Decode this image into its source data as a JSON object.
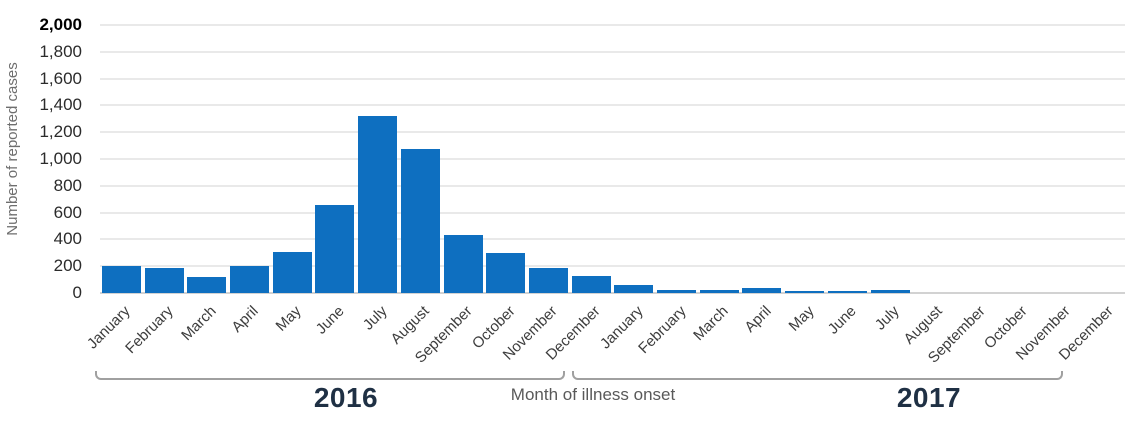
{
  "chart_data": {
    "type": "bar",
    "title": "",
    "ylabel": "Number of reported cases",
    "xlabel": "Month of illness onset",
    "ylim": [
      0,
      2000
    ],
    "ytick_step": 200,
    "ytick_labels": [
      "2,000",
      "1,800",
      "1,600",
      "1,400",
      "1,200",
      "1,000",
      "800",
      "600",
      "400",
      "200",
      "0"
    ],
    "grid": true,
    "legend_position": "none",
    "months": [
      "January",
      "February",
      "March",
      "April",
      "May",
      "June",
      "July",
      "August",
      "September",
      "October",
      "November",
      "December"
    ],
    "series": [
      {
        "name": "2016",
        "values": [
          200,
          190,
          120,
          205,
          305,
          660,
          1320,
          1075,
          435,
          295,
          190,
          130
        ]
      },
      {
        "name": "2017",
        "values": [
          60,
          25,
          25,
          35,
          15,
          15,
          20,
          0,
          0,
          0,
          0,
          0
        ]
      }
    ]
  },
  "colors": {
    "bar": "#0e6fc0",
    "gridline": "#e9e9e9",
    "axis_line": "#d2d2d2",
    "year_label": "#1f3044",
    "bracket": "#a0a0a0",
    "ytick_label": "#2b2b2b",
    "month_label": "#3d3d3d",
    "caption": "#595959"
  }
}
